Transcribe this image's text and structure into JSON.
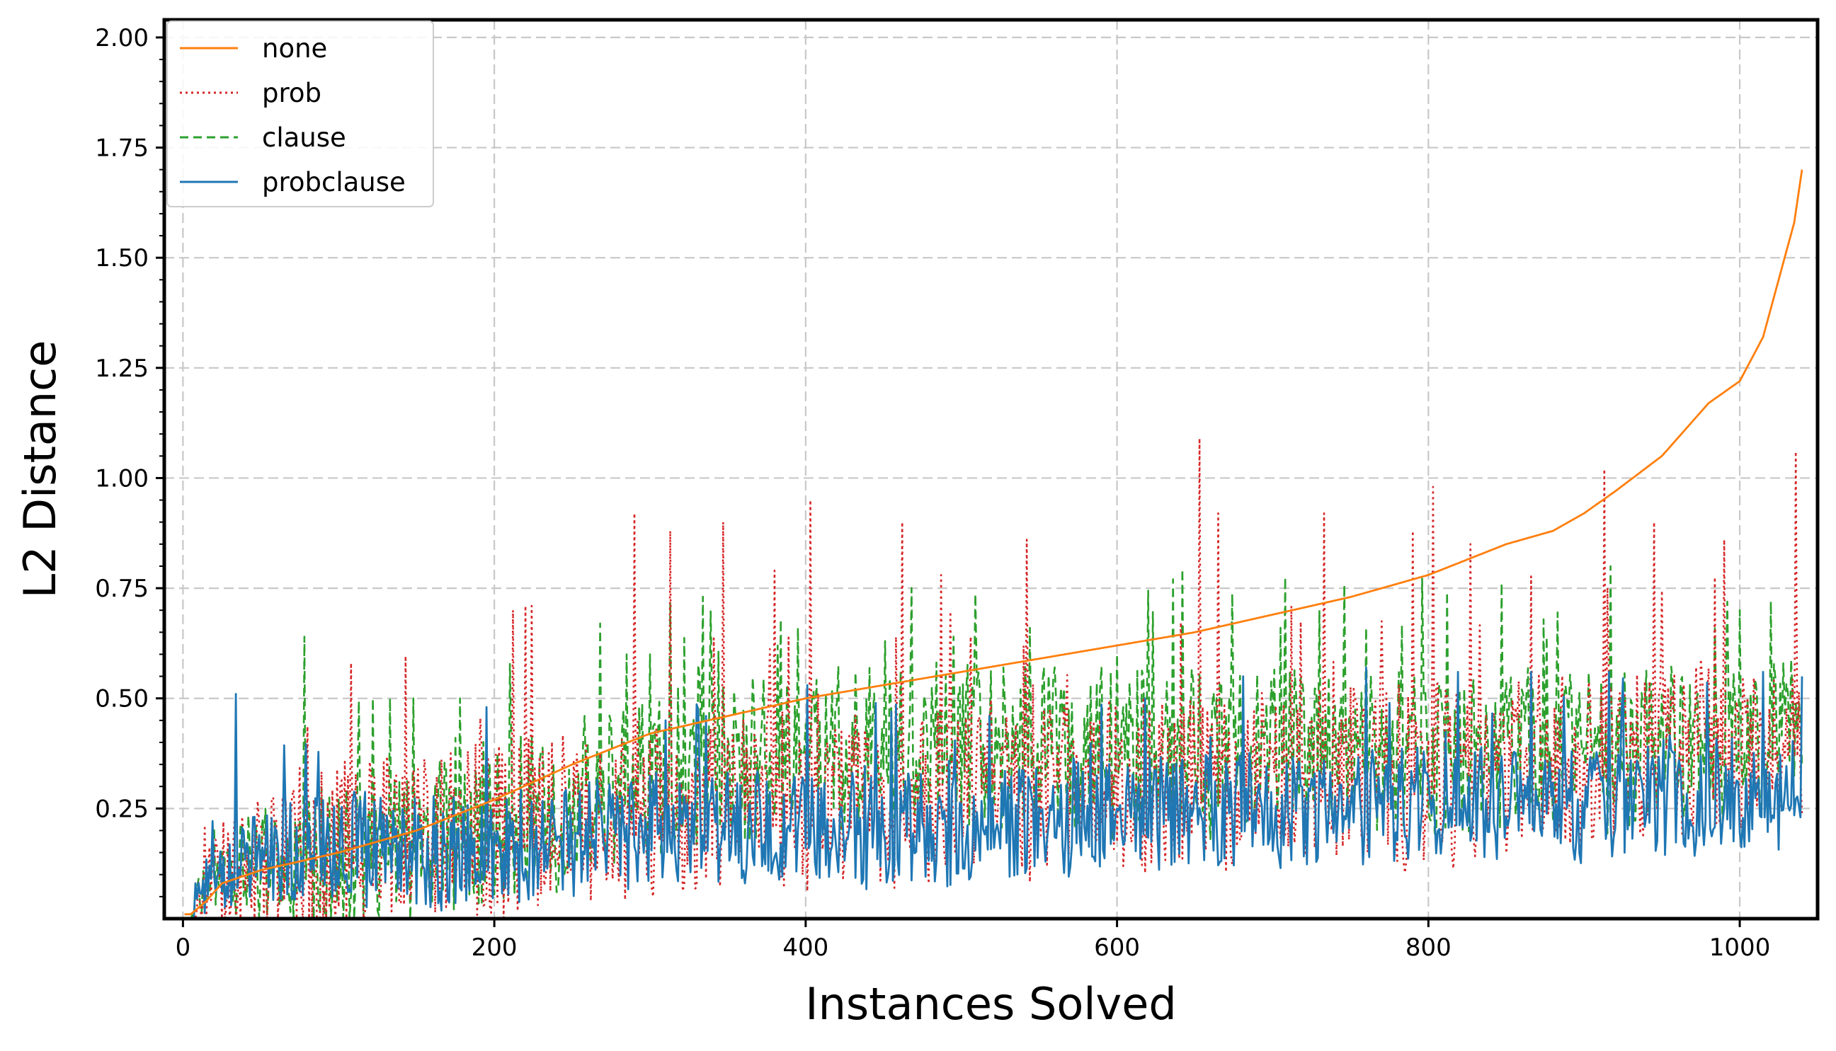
{
  "chart_data": {
    "type": "line",
    "title": "",
    "xlabel": "Instances Solved",
    "ylabel": "L2 Distance",
    "xlim": [
      -12,
      1050
    ],
    "ylim": [
      0.0,
      2.04
    ],
    "xticks": [
      0,
      200,
      400,
      600,
      800,
      1000
    ],
    "xtick_labels": [
      "0",
      "200",
      "400",
      "600",
      "800",
      "1000"
    ],
    "yticks": [
      0.25,
      0.5,
      0.75,
      1.0,
      1.25,
      1.5,
      1.75,
      2.0
    ],
    "ytick_labels": [
      "0.25",
      "0.50",
      "0.75",
      "1.00",
      "1.25",
      "1.50",
      "1.75",
      "2.00"
    ],
    "grid": true,
    "legend_position": "top-left",
    "n_points": 1040,
    "series": [
      {
        "name": "none",
        "color": "#ff7f0e",
        "line_style": "solid",
        "anchors": [
          [
            5,
            0.01
          ],
          [
            15,
            0.04
          ],
          [
            25,
            0.08
          ],
          [
            50,
            0.11
          ],
          [
            100,
            0.15
          ],
          [
            150,
            0.2
          ],
          [
            200,
            0.27
          ],
          [
            250,
            0.35
          ],
          [
            300,
            0.42
          ],
          [
            350,
            0.46
          ],
          [
            400,
            0.5
          ],
          [
            450,
            0.53
          ],
          [
            500,
            0.56
          ],
          [
            550,
            0.59
          ],
          [
            600,
            0.62
          ],
          [
            650,
            0.65
          ],
          [
            700,
            0.69
          ],
          [
            750,
            0.73
          ],
          [
            800,
            0.78
          ],
          [
            850,
            0.85
          ],
          [
            880,
            0.88
          ],
          [
            900,
            0.92
          ],
          [
            920,
            0.97
          ],
          [
            950,
            1.05
          ],
          [
            980,
            1.17
          ],
          [
            1000,
            1.22
          ],
          [
            1015,
            1.32
          ],
          [
            1025,
            1.45
          ],
          [
            1035,
            1.58
          ],
          [
            1040,
            1.7
          ]
        ]
      },
      {
        "name": "prob",
        "color": "#d62728",
        "line_style": "dotted",
        "base_profile": [
          [
            5,
            0.02
          ],
          [
            20,
            0.1
          ],
          [
            100,
            0.16
          ],
          [
            200,
            0.2
          ],
          [
            300,
            0.24
          ],
          [
            400,
            0.26
          ],
          [
            500,
            0.28
          ],
          [
            600,
            0.3
          ],
          [
            700,
            0.32
          ],
          [
            800,
            0.33
          ],
          [
            900,
            0.36
          ],
          [
            1000,
            0.4
          ],
          [
            1040,
            0.42
          ]
        ],
        "peaks": [
          [
            108,
            0.58
          ],
          [
            212,
            0.7
          ],
          [
            220,
            0.71
          ],
          [
            224,
            0.71
          ],
          [
            290,
            0.92
          ],
          [
            313,
            0.88
          ],
          [
            347,
            0.9
          ],
          [
            380,
            0.79
          ],
          [
            403,
            0.95
          ],
          [
            462,
            0.9
          ],
          [
            487,
            0.78
          ],
          [
            542,
            0.86
          ],
          [
            653,
            1.09
          ],
          [
            665,
            0.92
          ],
          [
            712,
            0.71
          ],
          [
            733,
            0.92
          ],
          [
            790,
            0.88
          ],
          [
            803,
            0.98
          ],
          [
            827,
            0.85
          ],
          [
            913,
            1.02
          ],
          [
            945,
            0.9
          ],
          [
            990,
            0.86
          ],
          [
            1036,
            1.06
          ]
        ]
      },
      {
        "name": "clause",
        "color": "#2ca02c",
        "line_style": "dashed",
        "base_profile": [
          [
            5,
            0.0
          ],
          [
            20,
            0.11
          ],
          [
            100,
            0.15
          ],
          [
            200,
            0.22
          ],
          [
            300,
            0.32
          ],
          [
            400,
            0.38
          ],
          [
            500,
            0.4
          ],
          [
            600,
            0.38
          ],
          [
            700,
            0.38
          ],
          [
            800,
            0.38
          ],
          [
            900,
            0.38
          ],
          [
            1000,
            0.4
          ],
          [
            1040,
            0.42
          ]
        ],
        "peaks": [
          [
            78,
            0.64
          ],
          [
            122,
            0.5
          ],
          [
            133,
            0.5
          ],
          [
            148,
            0.5
          ],
          [
            178,
            0.5
          ],
          [
            268,
            0.67
          ],
          [
            285,
            0.6
          ],
          [
            300,
            0.6
          ],
          [
            313,
            0.72
          ],
          [
            382,
            0.62
          ],
          [
            395,
            0.66
          ],
          [
            451,
            0.63
          ],
          [
            495,
            0.64
          ],
          [
            544,
            0.66
          ],
          [
            600,
            0.6
          ],
          [
            705,
            0.66
          ],
          [
            730,
            0.7
          ],
          [
            760,
            0.66
          ],
          [
            876,
            0.64
          ],
          [
            917,
            0.8
          ],
          [
            1000,
            0.7
          ],
          [
            1020,
            0.72
          ]
        ]
      },
      {
        "name": "probclause",
        "color": "#1f77b4",
        "line_style": "solid",
        "base_profile": [
          [
            5,
            0.01
          ],
          [
            15,
            0.08
          ],
          [
            50,
            0.15
          ],
          [
            100,
            0.15
          ],
          [
            200,
            0.16
          ],
          [
            300,
            0.2
          ],
          [
            400,
            0.21
          ],
          [
            500,
            0.2
          ],
          [
            600,
            0.24
          ],
          [
            700,
            0.25
          ],
          [
            800,
            0.26
          ],
          [
            900,
            0.27
          ],
          [
            1000,
            0.28
          ],
          [
            1040,
            0.28
          ]
        ],
        "peaks": [
          [
            34,
            0.51
          ],
          [
            195,
            0.48
          ],
          [
            310,
            0.45
          ],
          [
            336,
            0.46
          ],
          [
            401,
            0.53
          ],
          [
            518,
            0.46
          ],
          [
            618,
            0.5
          ],
          [
            681,
            0.55
          ],
          [
            760,
            0.57
          ],
          [
            819,
            0.56
          ],
          [
            866,
            0.56
          ],
          [
            916,
            0.56
          ],
          [
            1015,
            0.56
          ],
          [
            1040,
            0.55
          ]
        ]
      }
    ]
  }
}
